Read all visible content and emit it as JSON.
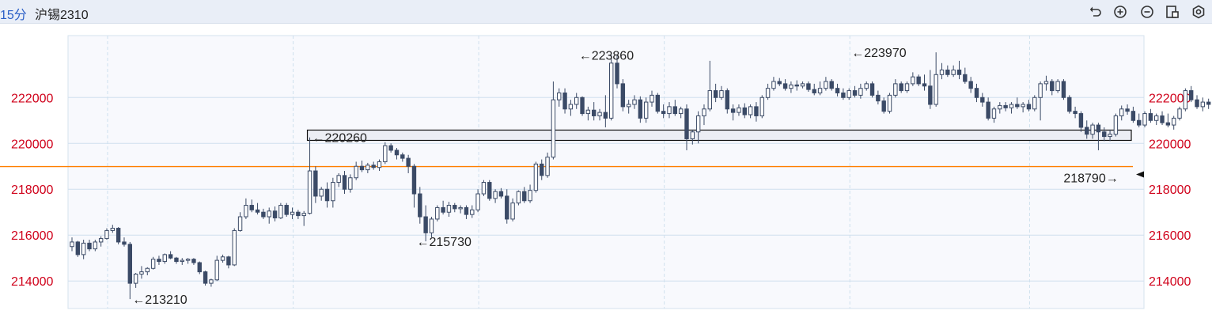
{
  "header": {
    "period": "15分",
    "symbol": "沪锡2310",
    "tools": [
      "undo-icon",
      "zoom-in-icon",
      "zoom-out-icon",
      "layout-icon",
      "settings-icon"
    ]
  },
  "colors": {
    "candle": "#3b4a66",
    "price_line": "#ff7f00",
    "grid": "#cfe0ee",
    "axis_text": "#d0021b"
  },
  "chart_data": {
    "type": "candlestick",
    "title": "",
    "ylim": [
      212800,
      224700
    ],
    "y_ticks": [
      214000,
      216000,
      218000,
      220000,
      222000
    ],
    "y_tick_labels": [
      "214000",
      "216000",
      "218000",
      "220000",
      "222000"
    ],
    "current_price": 218990,
    "zone": [
      220130,
      220580
    ],
    "annotations": [
      {
        "label": "←213210",
        "index": 10,
        "value": 213210,
        "side": "right"
      },
      {
        "label": "←220260",
        "index": 41,
        "value": 220260,
        "side": "right"
      },
      {
        "label": "←215730",
        "index": 59,
        "value": 215730,
        "side": "right"
      },
      {
        "label": "←223860",
        "index": 87,
        "value": 223860,
        "side": "right"
      },
      {
        "label": "←223970",
        "index": 134,
        "value": 223970,
        "side": "right"
      },
      {
        "label": "218790→",
        "index": 181,
        "value": 218790,
        "side": "left"
      }
    ],
    "candles": [
      [
        215500,
        215900,
        215300,
        215700
      ],
      [
        215700,
        215750,
        215050,
        215150
      ],
      [
        215150,
        215800,
        214950,
        215650
      ],
      [
        215650,
        215800,
        215300,
        215400
      ],
      [
        215400,
        215800,
        215300,
        215700
      ],
      [
        215700,
        215950,
        215500,
        215850
      ],
      [
        215850,
        216300,
        215800,
        216200
      ],
      [
        216200,
        216450,
        216100,
        216300
      ],
      [
        216300,
        216350,
        215600,
        215700
      ],
      [
        215700,
        215900,
        215500,
        215600
      ],
      [
        215600,
        215700,
        213210,
        213900
      ],
      [
        213900,
        214350,
        213700,
        214300
      ],
      [
        214300,
        214650,
        214100,
        214400
      ],
      [
        214400,
        214600,
        214250,
        214550
      ],
      [
        214550,
        215050,
        214500,
        214950
      ],
      [
        214950,
        215100,
        214700,
        214850
      ],
      [
        214850,
        215200,
        214750,
        215150
      ],
      [
        215150,
        215300,
        214950,
        215000
      ],
      [
        215000,
        215050,
        214750,
        214850
      ],
      [
        214850,
        215000,
        214700,
        214900
      ],
      [
        214900,
        215000,
        214750,
        214950
      ],
      [
        214950,
        215000,
        214700,
        214800
      ],
      [
        214800,
        214850,
        214300,
        214400
      ],
      [
        214400,
        214450,
        213800,
        213900
      ],
      [
        213900,
        214100,
        213750,
        214050
      ],
      [
        214050,
        215100,
        214000,
        214900
      ],
      [
        214900,
        215150,
        214800,
        215050
      ],
      [
        215050,
        215100,
        214550,
        214700
      ],
      [
        214700,
        216300,
        214650,
        216200
      ],
      [
        216200,
        217000,
        216150,
        216800
      ],
      [
        216800,
        217600,
        216700,
        217300
      ],
      [
        217300,
        217550,
        217000,
        217100
      ],
      [
        217100,
        217400,
        216900,
        217000
      ],
      [
        217000,
        217150,
        216700,
        216800
      ],
      [
        216800,
        217200,
        216500,
        217050
      ],
      [
        217050,
        217250,
        216600,
        216750
      ],
      [
        216750,
        217400,
        216700,
        217300
      ],
      [
        217300,
        217400,
        216800,
        216900
      ],
      [
        216900,
        217200,
        216700,
        217000
      ],
      [
        217000,
        217100,
        216700,
        216850
      ],
      [
        216850,
        217050,
        216400,
        216950
      ],
      [
        216950,
        220260,
        216900,
        218800
      ],
      [
        218800,
        219000,
        217400,
        217700
      ],
      [
        217700,
        218100,
        217500,
        218000
      ],
      [
        218000,
        218300,
        217200,
        217500
      ],
      [
        217500,
        218500,
        217200,
        218300
      ],
      [
        218300,
        218700,
        218100,
        218600
      ],
      [
        218600,
        218800,
        217800,
        218000
      ],
      [
        218000,
        218650,
        217850,
        218500
      ],
      [
        218500,
        219200,
        218400,
        219000
      ],
      [
        219000,
        219250,
        218750,
        218850
      ],
      [
        218850,
        219150,
        218700,
        219050
      ],
      [
        219050,
        219200,
        218850,
        218950
      ],
      [
        218950,
        219300,
        218800,
        219200
      ],
      [
        219200,
        220050,
        219100,
        219900
      ],
      [
        219900,
        220000,
        219600,
        219700
      ],
      [
        219700,
        219800,
        219300,
        219500
      ],
      [
        219500,
        219600,
        219200,
        219350
      ],
      [
        219350,
        219500,
        218700,
        219000
      ],
      [
        219000,
        219100,
        217200,
        217800
      ],
      [
        217800,
        218100,
        216500,
        216800
      ],
      [
        216800,
        217300,
        215730,
        216100
      ],
      [
        216100,
        216800,
        215900,
        216700
      ],
      [
        216700,
        217300,
        216600,
        217200
      ],
      [
        217200,
        217500,
        216900,
        217000
      ],
      [
        217000,
        217450,
        216800,
        217300
      ],
      [
        217300,
        217400,
        217000,
        217150
      ],
      [
        217150,
        217300,
        216950,
        217200
      ],
      [
        217200,
        217300,
        216700,
        216900
      ],
      [
        216900,
        217300,
        216750,
        217100
      ],
      [
        217100,
        218000,
        217000,
        217800
      ],
      [
        217800,
        218400,
        217700,
        218300
      ],
      [
        218300,
        218400,
        217500,
        217600
      ],
      [
        217600,
        218000,
        217400,
        217900
      ],
      [
        217900,
        218050,
        217600,
        217700
      ],
      [
        217700,
        218000,
        216500,
        216700
      ],
      [
        216700,
        217600,
        216600,
        217400
      ],
      [
        217400,
        217950,
        217300,
        217900
      ],
      [
        217900,
        218100,
        217400,
        217500
      ],
      [
        217500,
        218200,
        217400,
        217950
      ],
      [
        217950,
        219200,
        217850,
        219100
      ],
      [
        219100,
        219300,
        218400,
        218600
      ],
      [
        218600,
        219600,
        218500,
        219400
      ],
      [
        219400,
        222700,
        219300,
        221900
      ],
      [
        221900,
        222400,
        221600,
        222200
      ],
      [
        222200,
        222400,
        221300,
        221500
      ],
      [
        221500,
        221900,
        221200,
        221700
      ],
      [
        221700,
        222200,
        221500,
        222000
      ],
      [
        222000,
        222050,
        221200,
        221300
      ],
      [
        221300,
        221600,
        221000,
        221450
      ],
      [
        221450,
        221800,
        221000,
        221200
      ],
      [
        221200,
        221500,
        221000,
        221350
      ],
      [
        221350,
        222100,
        220700,
        221100
      ],
      [
        221100,
        223860,
        221000,
        223500
      ],
      [
        223500,
        223860,
        222400,
        222600
      ],
      [
        222600,
        222800,
        221400,
        221600
      ],
      [
        221600,
        221900,
        221300,
        221700
      ],
      [
        221700,
        222100,
        221500,
        221900
      ],
      [
        221900,
        222050,
        220900,
        221100
      ],
      [
        221100,
        222000,
        220900,
        221800
      ],
      [
        221800,
        222300,
        221600,
        222100
      ],
      [
        222100,
        222200,
        221300,
        221400
      ],
      [
        221400,
        221700,
        221100,
        221300
      ],
      [
        221300,
        221800,
        221100,
        221600
      ],
      [
        221600,
        221900,
        221200,
        221300
      ],
      [
        221300,
        221600,
        221100,
        221500
      ],
      [
        221500,
        221700,
        219700,
        220200
      ],
      [
        220200,
        220600,
        219950,
        220500
      ],
      [
        220500,
        221400,
        220000,
        221200
      ],
      [
        221200,
        221700,
        220800,
        221500
      ],
      [
        221500,
        223600,
        221400,
        222300
      ],
      [
        222300,
        222600,
        221800,
        222000
      ],
      [
        222000,
        222500,
        221900,
        222300
      ],
      [
        222300,
        222400,
        221300,
        221500
      ],
      [
        221500,
        221700,
        221000,
        221350
      ],
      [
        221350,
        221700,
        221200,
        221550
      ],
      [
        221550,
        221750,
        221100,
        221250
      ],
      [
        221250,
        221700,
        221100,
        221600
      ],
      [
        221600,
        221800,
        220950,
        221200
      ],
      [
        221200,
        222100,
        221100,
        222000
      ],
      [
        222000,
        222600,
        221900,
        222400
      ],
      [
        222400,
        222900,
        222300,
        222700
      ],
      [
        222700,
        222850,
        222500,
        222600
      ],
      [
        222600,
        222800,
        222300,
        222400
      ],
      [
        222400,
        222700,
        222200,
        222550
      ],
      [
        222550,
        222750,
        222300,
        222500
      ],
      [
        222500,
        222700,
        222400,
        222600
      ],
      [
        222600,
        222700,
        222250,
        222350
      ],
      [
        222350,
        222600,
        222100,
        222200
      ],
      [
        222200,
        222700,
        222100,
        222400
      ],
      [
        222400,
        222900,
        222300,
        222700
      ],
      [
        222700,
        222800,
        222300,
        222400
      ],
      [
        222400,
        222600,
        222050,
        222200
      ],
      [
        222200,
        222400,
        221900,
        222000
      ],
      [
        222000,
        222400,
        221900,
        222300
      ],
      [
        222300,
        222500,
        222000,
        222100
      ],
      [
        222100,
        222600,
        221950,
        222400
      ],
      [
        222400,
        222700,
        222300,
        222600
      ],
      [
        222600,
        222700,
        222000,
        222100
      ],
      [
        222100,
        222300,
        221700,
        221850
      ],
      [
        221850,
        222000,
        221300,
        221400
      ],
      [
        221400,
        222200,
        221300,
        222100
      ],
      [
        222100,
        222800,
        222000,
        222600
      ],
      [
        222600,
        222700,
        222200,
        222300
      ],
      [
        222300,
        222700,
        222200,
        222600
      ],
      [
        222600,
        223100,
        222500,
        222900
      ],
      [
        222900,
        223000,
        222500,
        222600
      ],
      [
        222600,
        223000,
        222300,
        222500
      ],
      [
        222500,
        223200,
        221500,
        221700
      ],
      [
        221700,
        223970,
        221600,
        223000
      ],
      [
        223000,
        223500,
        222800,
        223200
      ],
      [
        223200,
        223400,
        222900,
        223000
      ],
      [
        223000,
        223400,
        222900,
        223200
      ],
      [
        223200,
        223600,
        222800,
        223000
      ],
      [
        223000,
        223300,
        222600,
        222700
      ],
      [
        222700,
        222900,
        222200,
        222400
      ],
      [
        222400,
        222600,
        221800,
        222000
      ],
      [
        222000,
        222200,
        221600,
        221800
      ],
      [
        221800,
        222000,
        221000,
        221100
      ],
      [
        221100,
        221600,
        220900,
        221500
      ],
      [
        221500,
        221800,
        221300,
        221650
      ],
      [
        221650,
        221800,
        221400,
        221550
      ],
      [
        221550,
        221800,
        221300,
        221700
      ],
      [
        221700,
        222000,
        221500,
        221600
      ],
      [
        221600,
        221800,
        221350,
        221700
      ],
      [
        221700,
        221900,
        221400,
        221500
      ],
      [
        221500,
        222100,
        221400,
        222000
      ],
      [
        222000,
        222700,
        221000,
        222600
      ],
      [
        222600,
        222950,
        222300,
        222700
      ],
      [
        222700,
        222800,
        222100,
        222300
      ],
      [
        222300,
        222800,
        222200,
        222700
      ],
      [
        222700,
        222800,
        221900,
        222000
      ],
      [
        222000,
        222100,
        221300,
        221400
      ],
      [
        221400,
        221600,
        221100,
        221300
      ],
      [
        221300,
        221400,
        220500,
        220700
      ],
      [
        220700,
        221000,
        220200,
        220400
      ],
      [
        220400,
        220900,
        220200,
        220800
      ],
      [
        220800,
        220900,
        219700,
        220500
      ],
      [
        220500,
        220700,
        220100,
        220300
      ],
      [
        220300,
        220600,
        220100,
        220400
      ],
      [
        220400,
        221300,
        220300,
        221200
      ],
      [
        221200,
        221650,
        221000,
        221500
      ],
      [
        221500,
        221700,
        221250,
        221400
      ],
      [
        221400,
        221600,
        220900,
        221000
      ],
      [
        221000,
        221300,
        220700,
        220800
      ],
      [
        220800,
        221400,
        220700,
        221300
      ],
      [
        221300,
        221500,
        220900,
        221000
      ],
      [
        221000,
        221300,
        220800,
        221200
      ],
      [
        221200,
        221400,
        220800,
        220900
      ],
      [
        220900,
        221300,
        220700,
        220800
      ],
      [
        220800,
        221200,
        220600,
        221100
      ],
      [
        221100,
        221600,
        221000,
        221500
      ],
      [
        221500,
        222400,
        221400,
        222300
      ],
      [
        222300,
        222500,
        221800,
        221900
      ],
      [
        221900,
        222100,
        221500,
        221600
      ],
      [
        221600,
        222000,
        221400,
        221800
      ],
      [
        221800,
        221950,
        221500,
        221700
      ],
      [
        221700,
        222300,
        221600,
        222200
      ],
      [
        222200,
        222400,
        222000,
        222100
      ],
      [
        222100,
        222300,
        221900,
        222200
      ],
      [
        222200,
        222300,
        221800,
        221900
      ],
      [
        221900,
        222000,
        221500,
        221700
      ],
      [
        221700,
        221800,
        221000,
        221200
      ],
      [
        221000,
        221000,
        218790,
        218990
      ]
    ]
  }
}
